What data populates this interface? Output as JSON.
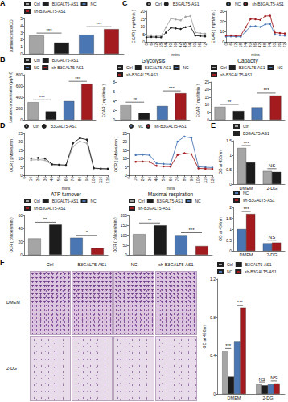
{
  "panel_labels": [
    "A",
    "B",
    "C",
    "D",
    "E",
    "F"
  ],
  "chart_data": [
    {
      "type": "bar",
      "ylabel": "Luminescence/OD",
      "categories": [
        "Ctrl",
        "B3GALT5-AS1",
        "NC",
        "sh-B3GALT5-AS1"
      ],
      "values": [
        2.6,
        1.6,
        2.7,
        3.5
      ],
      "colors": [
        "#a5a5a5",
        "#1c1c1c",
        "#4a77b4",
        "#a31b1f"
      ],
      "ylim": [
        0,
        5
      ],
      "yticks": [
        0,
        1,
        2,
        3,
        4,
        5
      ],
      "tick_labels": "y",
      "legend": "top",
      "grid": false,
      "annotations": [
        {
          "text": "***",
          "between": [
            "Ctrl",
            "B3GALT5-AS1"
          ]
        },
        {
          "text": "***",
          "between": [
            "NC",
            "sh-B3GALT5-AS1"
          ]
        }
      ]
    },
    {
      "type": "line",
      "ylabel": "ECAR ( mpH/min )",
      "xlabel": "mins",
      "x": [
        0,
        6,
        12,
        18,
        24,
        30,
        36,
        42,
        48,
        54,
        60,
        66,
        72
      ],
      "series": [
        {
          "name": "Ctrl",
          "color": "#a5a5a5",
          "values": [
            4.1,
            4.3,
            4.2,
            4.0,
            9.5,
            15.2,
            14.6,
            14.1,
            16.4,
            16.8,
            6.2,
            5.6,
            5.3
          ]
        },
        {
          "name": "B3GALT5-AS1",
          "color": "#1c1c1c",
          "values": [
            3.0,
            3.2,
            3.1,
            3.0,
            6.1,
            9.2,
            8.8,
            8.4,
            9.6,
            10.1,
            4.1,
            3.8,
            3.6
          ]
        }
      ],
      "xlim": [
        0,
        72
      ],
      "xticks": [
        0,
        6,
        12,
        18,
        24,
        30,
        36,
        42,
        48,
        54,
        60,
        66,
        72
      ],
      "ylim": [
        0,
        20
      ],
      "yticks": [
        0,
        5,
        10,
        15,
        20
      ],
      "legend": "top",
      "grid": false,
      "marker": "circle"
    },
    {
      "type": "line",
      "ylabel": "ECAR ( mpH/min )",
      "xlabel": "mins",
      "x": [
        0,
        6,
        12,
        18,
        24,
        30,
        36,
        42,
        48,
        54,
        60,
        66,
        72
      ],
      "series": [
        {
          "name": "NC",
          "color": "#4a77b4",
          "values": [
            5.2,
            5.4,
            5.1,
            5.0,
            10.2,
            15.1,
            15.3,
            14.6,
            17.2,
            17.6,
            7.1,
            6.6,
            6.2
          ]
        },
        {
          "name": "sh-B3GALT5-AS1",
          "color": "#a31b1f",
          "values": [
            6.1,
            6.3,
            6.0,
            6.2,
            14.3,
            22.4,
            22.1,
            21.5,
            25.2,
            25.6,
            9.1,
            8.6,
            8.2
          ]
        }
      ],
      "xlim": [
        0,
        72
      ],
      "xticks": [
        0,
        6,
        12,
        18,
        24,
        30,
        36,
        42,
        48,
        54,
        60,
        66,
        72
      ],
      "ylim": [
        0,
        30
      ],
      "yticks": [
        0,
        10,
        20,
        30
      ],
      "legend": "top",
      "grid": false,
      "marker": "circle"
    },
    {
      "type": "bar",
      "ylabel": "Lactate concentration(μg/ml)",
      "categories": [
        "Ctrl",
        "B3GALT5-AS1",
        "NC",
        "sh-B3GALT5-AS1"
      ],
      "values": [
        310,
        150,
        330,
        640
      ],
      "colors": [
        "#a5a5a5",
        "#1c1c1c",
        "#4a77b4",
        "#a31b1f"
      ],
      "ylim": [
        0,
        800
      ],
      "yticks": [
        0,
        200,
        400,
        600,
        800
      ],
      "tick_labels": "y",
      "legend": "top",
      "grid": false,
      "annotations": [
        {
          "text": "***",
          "between": [
            "Ctrl",
            "B3GALT5-AS1"
          ]
        },
        {
          "text": "***",
          "between": [
            "NC",
            "sh-B3GALT5-AS1"
          ]
        }
      ]
    },
    {
      "type": "bar",
      "title": "Glycolysis",
      "ylabel": "ECAR ( mpH/min )",
      "categories": [
        "Ctrl",
        "B3GALT5-AS1",
        "NC",
        "sh-B3GALT5-AS1"
      ],
      "values": [
        3.2,
        1.4,
        2.9,
        5.6
      ],
      "colors": [
        "#a5a5a5",
        "#1c1c1c",
        "#4a77b4",
        "#a31b1f"
      ],
      "ylim": [
        0,
        8
      ],
      "yticks": [
        0,
        2,
        4,
        6,
        8
      ],
      "tick_labels": "y",
      "legend": "top",
      "grid": false,
      "annotations": [
        {
          "text": "**",
          "between": [
            "Ctrl",
            "B3GALT5-AS1"
          ]
        },
        {
          "text": "***",
          "between": [
            "NC",
            "sh-B3GALT5-AS1"
          ]
        }
      ]
    },
    {
      "type": "bar",
      "title": "Capacity",
      "ylabel": "ECAR ( mpH/min )",
      "categories": [
        "Ctrl",
        "B3GALT5-AS1",
        "NC",
        "sh-B3GALT5-AS1"
      ],
      "values": [
        8.5,
        5.8,
        8.2,
        16
      ],
      "colors": [
        "#a5a5a5",
        "#1c1c1c",
        "#4a77b4",
        "#a31b1f"
      ],
      "ylim": [
        0,
        25
      ],
      "yticks": [
        0,
        5,
        10,
        15,
        20,
        25
      ],
      "tick_labels": "y",
      "legend": "top",
      "grid": false,
      "annotations": [
        {
          "text": "**",
          "between": [
            "Ctrl",
            "B3GALT5-AS1"
          ]
        },
        {
          "text": "***",
          "between": [
            "NC",
            "sh-B3GALT5-AS1"
          ]
        }
      ]
    },
    {
      "type": "line",
      "ylabel": "OCR ( pMoles/min )",
      "xlabel": "mins",
      "x": [
        10,
        20,
        30,
        40,
        50,
        60,
        70,
        80,
        90,
        100,
        110,
        120
      ],
      "series": [
        {
          "name": "Ctrl",
          "color": "#a5a5a5",
          "values": [
            9.1,
            9.3,
            9.0,
            6.1,
            5.8,
            5.6,
            17.2,
            20.3,
            19.1,
            4.1,
            3.8,
            3.7
          ]
        },
        {
          "name": "B3GALT5-AS1",
          "color": "#1c1c1c",
          "values": [
            10.2,
            10.4,
            10.1,
            6.6,
            6.3,
            6.1,
            19.1,
            22.2,
            21.3,
            4.3,
            4.0,
            3.9
          ]
        }
      ],
      "xlim": [
        0,
        120
      ],
      "xticks": [
        0,
        10,
        20,
        30,
        40,
        50,
        60,
        70,
        80,
        90,
        100,
        110,
        120
      ],
      "ylim": [
        0,
        25
      ],
      "yticks": [
        0,
        5,
        10,
        15,
        20,
        25
      ],
      "legend": "top",
      "grid": false,
      "marker": "circle"
    },
    {
      "type": "line",
      "ylabel": "OCR ( pMoles/min )",
      "xlabel": "mins",
      "x": [
        10,
        20,
        30,
        40,
        50,
        60,
        70,
        80,
        90,
        100,
        110,
        120
      ],
      "series": [
        {
          "name": "NC",
          "color": "#4a77b4",
          "values": [
            12.1,
            12.3,
            12.0,
            7.1,
            6.8,
            6.6,
            20.2,
            23.1,
            22.3,
            5.1,
            4.8,
            4.6
          ]
        },
        {
          "name": "sh-B3GALT5-AS1",
          "color": "#a31b1f",
          "values": [
            8.1,
            8.2,
            8.0,
            5.6,
            5.3,
            5.2,
            12.1,
            13.2,
            12.6,
            4.1,
            3.9,
            3.8
          ]
        }
      ],
      "xlim": [
        0,
        120
      ],
      "xticks": [
        0,
        10,
        20,
        30,
        40,
        50,
        60,
        70,
        80,
        90,
        100,
        110,
        120
      ],
      "ylim": [
        0,
        25
      ],
      "yticks": [
        0,
        5,
        10,
        15,
        20,
        25
      ],
      "legend": "top",
      "grid": false,
      "marker": "circle"
    },
    {
      "type": "bar",
      "title": "ATP turnover",
      "ylabel": "OCR ( pMoles/min )",
      "categories": [
        "Ctrl",
        "B3GALT5-AS1",
        "NC",
        "sh-B3GALT5-AS1"
      ],
      "values": [
        25,
        46,
        26,
        10
      ],
      "colors": [
        "#a5a5a5",
        "#1c1c1c",
        "#4a77b4",
        "#a31b1f"
      ],
      "ylim": [
        0,
        60
      ],
      "yticks": [
        0,
        20,
        40,
        60
      ],
      "tick_labels": "y",
      "legend": "top",
      "grid": false,
      "annotations": [
        {
          "text": "**",
          "between": [
            "Ctrl",
            "B3GALT5-AS1"
          ]
        },
        {
          "text": "*",
          "between": [
            "NC",
            "sh-B3GALT5-AS1"
          ]
        }
      ]
    },
    {
      "type": "bar",
      "title": "Maximal respiration",
      "ylabel": "OCR ( pMoles/min )",
      "categories": [
        "Ctrl",
        "B3GALT5-AS1",
        "NC",
        "sh-B3GALT5-AS1"
      ],
      "values": [
        105,
        150,
        100,
        45
      ],
      "colors": [
        "#a5a5a5",
        "#1c1c1c",
        "#4a77b4",
        "#a31b1f"
      ],
      "ylim": [
        0,
        200
      ],
      "yticks": [
        0,
        50,
        100,
        150,
        200
      ],
      "tick_labels": "y",
      "legend": "top",
      "grid": false,
      "annotations": [
        {
          "text": "**",
          "between": [
            "Ctrl",
            "B3GALT5-AS1"
          ]
        },
        {
          "text": "***",
          "between": [
            "NC",
            "sh-B3GALT5-AS1"
          ]
        }
      ]
    },
    {
      "type": "bar",
      "ylabel": "OD at 450nm",
      "categories": [
        "DMEM",
        "2-DG"
      ],
      "series": [
        {
          "name": "Ctrl",
          "color": "#a5a5a5",
          "values": [
            1.25,
            0.45
          ]
        },
        {
          "name": "B3GALT5-AS1",
          "color": "#1c1c1c",
          "values": [
            0.75,
            0.42
          ]
        }
      ],
      "ylim": [
        0,
        1.5
      ],
      "yticks": [
        0,
        0.5,
        1,
        1.5
      ],
      "legend": "top",
      "grid": false,
      "annotations": [
        {
          "text": "***",
          "category": "DMEM",
          "between": [
            "Ctrl",
            "B3GALT5-AS1"
          ]
        },
        {
          "text": "NS",
          "category": "2-DG",
          "between": [
            "Ctrl",
            "B3GALT5-AS1"
          ]
        }
      ]
    },
    {
      "type": "bar",
      "ylabel": "OD at 450nm",
      "categories": [
        "DMEM",
        "2-DG"
      ],
      "series": [
        {
          "name": "NC",
          "color": "#4a77b4",
          "values": [
            1.0,
            0.35
          ]
        },
        {
          "name": "sh-B3GALT5-AS1",
          "color": "#a31b1f",
          "values": [
            1.7,
            0.38
          ]
        }
      ],
      "ylim": [
        0,
        2
      ],
      "yticks": [
        0,
        0.5,
        1,
        1.5,
        2
      ],
      "legend": "top",
      "grid": false,
      "annotations": [
        {
          "text": "***",
          "category": "DMEM",
          "between": [
            "NC",
            "sh-B3GALT5-AS1"
          ]
        },
        {
          "text": "NS",
          "category": "2-DG",
          "between": [
            "NC",
            "sh-B3GALT5-AS1"
          ]
        }
      ]
    },
    {
      "type": "bar",
      "ylabel": "OD at 450nm",
      "categories": [
        "DMEM",
        "2-DG"
      ],
      "series": [
        {
          "name": "Ctrl",
          "color": "#a5a5a5",
          "values": [
            0.45,
            0.1
          ]
        },
        {
          "name": "B3GALT5-AS1",
          "color": "#1c1c1c",
          "values": [
            0.18,
            0.09
          ]
        },
        {
          "name": "NC",
          "color": "#4a77b4",
          "values": [
            0.55,
            0.1
          ]
        },
        {
          "name": "sh-B3GALT5-AS1",
          "color": "#a31b1f",
          "values": [
            0.9,
            0.11
          ]
        }
      ],
      "ylim": [
        0,
        1.2
      ],
      "yticks": [
        0,
        0.4,
        0.8,
        1.2
      ],
      "legend": "top",
      "grid": false,
      "annotations": [
        {
          "text": "***",
          "category": "DMEM",
          "between": [
            "Ctrl",
            "B3GALT5-AS1"
          ]
        },
        {
          "text": "***",
          "category": "DMEM",
          "between": [
            "NC",
            "sh-B3GALT5-AS1"
          ]
        },
        {
          "text": "NS",
          "category": "2-DG",
          "between": [
            "Ctrl",
            "B3GALT5-AS1"
          ]
        },
        {
          "text": "NS",
          "category": "2-DG",
          "between": [
            "NC",
            "sh-B3GALT5-AS1"
          ]
        }
      ]
    }
  ],
  "image_panel": {
    "columns": [
      "Ctrl",
      "B3GALT5-AS1",
      "NC",
      "sh-B3GALT5-AS1"
    ],
    "rows": [
      "DMEM",
      "2-DG"
    ]
  }
}
